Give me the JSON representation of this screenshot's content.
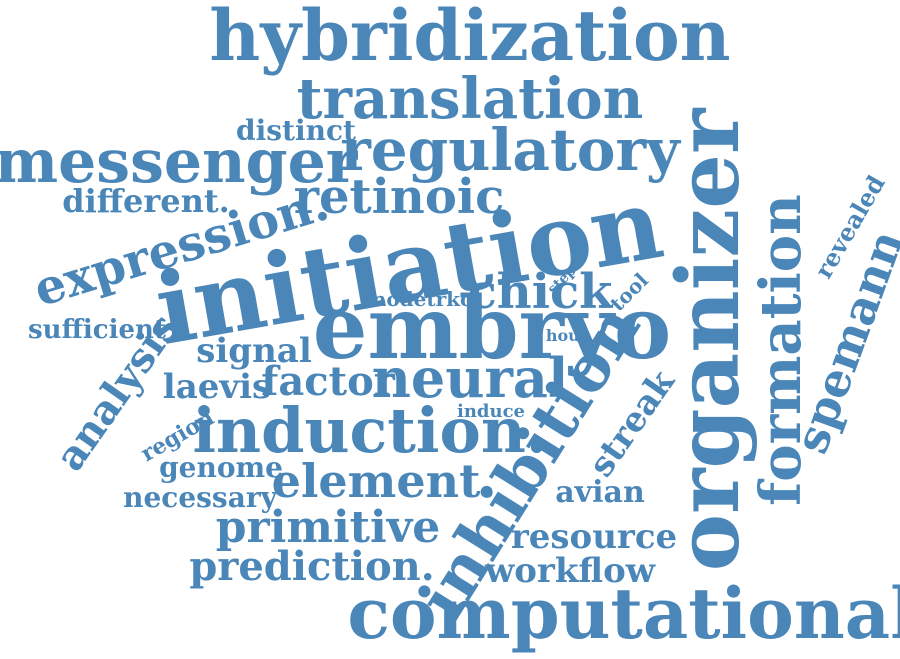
{
  "style": {
    "word_color": "#4a86b8",
    "background": "#ffffff"
  },
  "words": [
    "hybridization",
    "translation",
    "distinct",
    "messenger",
    "regulatory",
    "different.",
    "retinoic",
    "expression.",
    "initiation",
    "organizer",
    "formation",
    "spemann",
    "revealed",
    "embryo",
    "chick",
    "step",
    "tool",
    "nodetrkc",
    "sufficient",
    "hour",
    "analysis",
    "signal",
    "neural",
    "laevis",
    "factor",
    "induce",
    "region",
    "induction.",
    "inhibition",
    "streak",
    "genome",
    "element.",
    "necessary",
    "avian",
    "primitive",
    "resource",
    "prediction.",
    "workflow",
    "computational"
  ]
}
